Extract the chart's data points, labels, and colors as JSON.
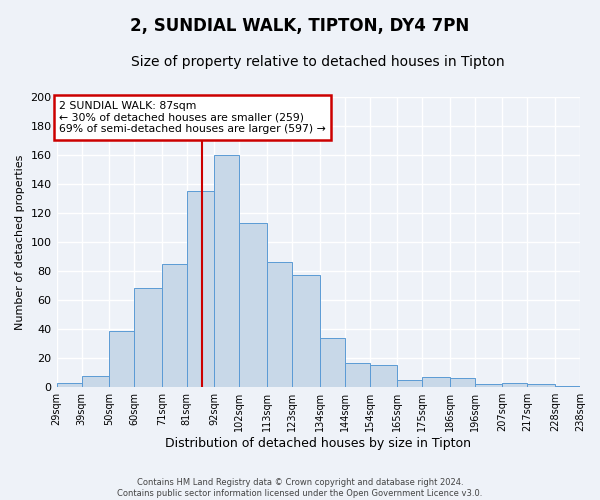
{
  "title": "2, SUNDIAL WALK, TIPTON, DY4 7PN",
  "subtitle": "Size of property relative to detached houses in Tipton",
  "xlabel": "Distribution of detached houses by size in Tipton",
  "ylabel": "Number of detached properties",
  "footer_line1": "Contains HM Land Registry data © Crown copyright and database right 2024.",
  "footer_line2": "Contains public sector information licensed under the Open Government Licence v3.0.",
  "bin_labels": [
    "29sqm",
    "39sqm",
    "50sqm",
    "60sqm",
    "71sqm",
    "81sqm",
    "92sqm",
    "102sqm",
    "113sqm",
    "123sqm",
    "134sqm",
    "144sqm",
    "154sqm",
    "165sqm",
    "175sqm",
    "186sqm",
    "196sqm",
    "207sqm",
    "217sqm",
    "228sqm",
    "238sqm"
  ],
  "bin_edges": [
    29,
    39,
    50,
    60,
    71,
    81,
    92,
    102,
    113,
    123,
    134,
    144,
    154,
    165,
    175,
    186,
    196,
    207,
    217,
    228,
    238
  ],
  "bar_heights": [
    3,
    8,
    39,
    68,
    85,
    135,
    160,
    113,
    86,
    77,
    34,
    17,
    15,
    5,
    7,
    6,
    2,
    3,
    2,
    1
  ],
  "bar_color": "#c8d8e8",
  "bar_edge_color": "#5b9bd5",
  "vline_x": 87,
  "vline_color": "#cc0000",
  "annotation_title": "2 SUNDIAL WALK: 87sqm",
  "annotation_line1": "← 30% of detached houses are smaller (259)",
  "annotation_line2": "69% of semi-detached houses are larger (597) →",
  "annotation_box_color": "#cc0000",
  "ylim": [
    0,
    200
  ],
  "yticks": [
    0,
    20,
    40,
    60,
    80,
    100,
    120,
    140,
    160,
    180,
    200
  ],
  "background_color": "#eef2f8",
  "grid_color": "#ffffff",
  "title_fontsize": 12,
  "subtitle_fontsize": 10,
  "ylabel_fontsize": 8,
  "xlabel_fontsize": 9
}
